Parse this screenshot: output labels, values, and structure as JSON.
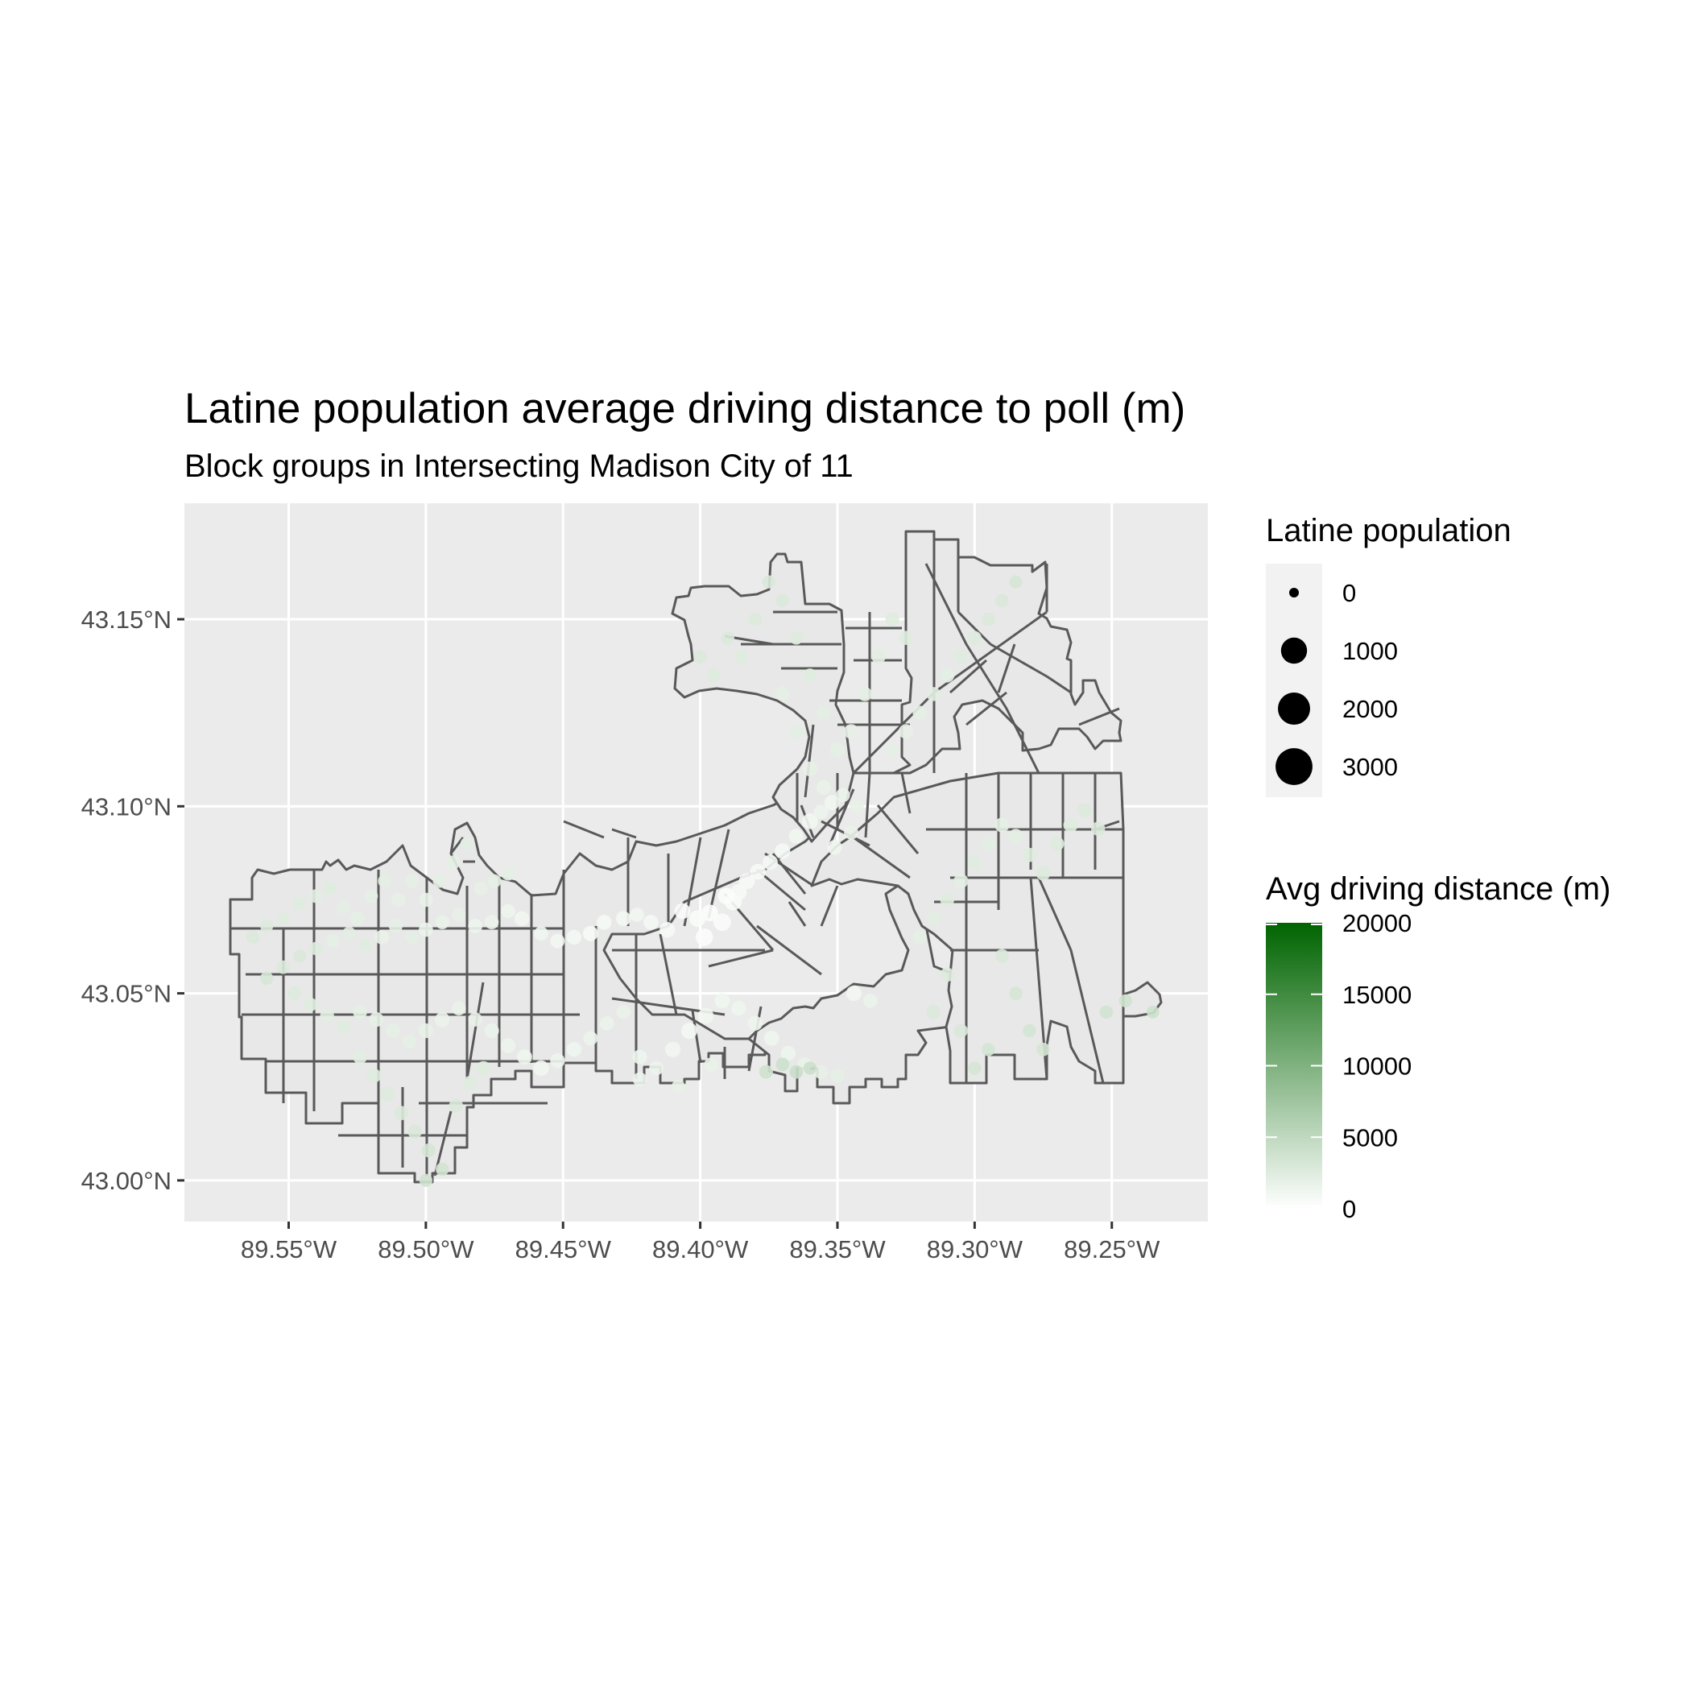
{
  "figure": {
    "title": "Latine population average driving distance to poll (m)",
    "subtitle": "Block groups in Intersecting Madison City of 11"
  },
  "chart_data": {
    "type": "map",
    "x_ticks": [
      "89.55°W",
      "89.50°W",
      "89.45°W",
      "89.40°W",
      "89.35°W",
      "89.30°W",
      "89.25°W"
    ],
    "x_tick_values": [
      -89.55,
      -89.5,
      -89.45,
      -89.4,
      -89.35,
      -89.3,
      -89.25
    ],
    "y_ticks": [
      "43.15°N",
      "43.10°N",
      "43.05°N",
      "43.00°N"
    ],
    "y_tick_values": [
      43.15,
      43.1,
      43.05,
      43.0
    ],
    "xlim": [
      -89.588,
      -89.215
    ],
    "ylim": [
      42.989,
      43.181
    ],
    "grid": true,
    "panel_color": "#ebebeb",
    "boundary_color": "#595959",
    "legends": {
      "size": {
        "title": "Latine population",
        "entries": [
          {
            "label": "0",
            "value": 0
          },
          {
            "label": "1000",
            "value": 1000
          },
          {
            "label": "2000",
            "value": 2000
          },
          {
            "label": "3000",
            "value": 3000
          }
        ]
      },
      "color": {
        "title": "Avg driving distance (m)",
        "low_color": "#ffffff",
        "high_color": "#006400",
        "range": [
          0,
          20000
        ],
        "breaks": [
          {
            "label": "20000",
            "value": 20000
          },
          {
            "label": "15000",
            "value": 15000
          },
          {
            "label": "10000",
            "value": 10000
          },
          {
            "label": "5000",
            "value": 5000
          },
          {
            "label": "0",
            "value": 0
          }
        ]
      }
    },
    "points": [
      [
        -89.3965,
        43.0715,
        130,
        300
      ],
      [
        -89.392,
        43.069,
        180,
        500
      ],
      [
        -89.388,
        43.0745,
        160,
        400
      ],
      [
        -89.386,
        43.077,
        110,
        600
      ],
      [
        -89.3905,
        43.076,
        140,
        300
      ],
      [
        -89.401,
        43.07,
        120,
        450
      ],
      [
        -89.4065,
        43.072,
        90,
        500
      ],
      [
        -89.3985,
        43.065,
        170,
        350
      ],
      [
        -89.383,
        43.08,
        100,
        700
      ],
      [
        -89.379,
        43.0825,
        90,
        600
      ],
      [
        -89.3745,
        43.085,
        70,
        900
      ],
      [
        -89.37,
        43.088,
        80,
        800
      ],
      [
        -89.365,
        43.092,
        60,
        1200
      ],
      [
        -89.36,
        43.096,
        90,
        1000
      ],
      [
        -89.356,
        43.0985,
        50,
        1500
      ],
      [
        -89.352,
        43.101,
        70,
        1100
      ],
      [
        -89.348,
        43.103,
        40,
        1600
      ],
      [
        -89.343,
        43.1,
        35,
        1800
      ],
      [
        -89.351,
        43.089,
        60,
        1300
      ],
      [
        -89.345,
        43.093,
        45,
        1700
      ],
      [
        -89.412,
        43.067,
        80,
        700
      ],
      [
        -89.418,
        43.069,
        60,
        900
      ],
      [
        -89.423,
        43.071,
        40,
        1100
      ],
      [
        -89.428,
        43.07,
        55,
        900
      ],
      [
        -89.435,
        43.069,
        60,
        800
      ],
      [
        -89.44,
        43.066,
        70,
        700
      ],
      [
        -89.446,
        43.065,
        50,
        900
      ],
      [
        -89.452,
        43.064,
        45,
        1000
      ],
      [
        -89.458,
        43.066,
        40,
        1200
      ],
      [
        -89.465,
        43.07,
        55,
        1100
      ],
      [
        -89.47,
        43.072,
        35,
        1400
      ],
      [
        -89.476,
        43.069,
        40,
        1600
      ],
      [
        -89.482,
        43.068,
        45,
        1400
      ],
      [
        -89.488,
        43.071,
        30,
        1900
      ],
      [
        -89.494,
        43.069,
        35,
        1700
      ],
      [
        -89.5,
        43.067,
        40,
        1500
      ],
      [
        -89.505,
        43.065,
        25,
        2200
      ],
      [
        -89.511,
        43.068,
        30,
        2000
      ],
      [
        -89.516,
        43.065,
        45,
        1700
      ],
      [
        -89.522,
        43.063,
        20,
        2400
      ],
      [
        -89.528,
        43.066,
        25,
        2300
      ],
      [
        -89.534,
        43.064,
        30,
        2100
      ],
      [
        -89.54,
        43.062,
        20,
        2600
      ],
      [
        -89.546,
        43.06,
        15,
        3000
      ],
      [
        -89.552,
        43.057,
        25,
        2800
      ],
      [
        -89.558,
        43.054,
        20,
        3100
      ],
      [
        -89.548,
        43.05,
        30,
        2700
      ],
      [
        -89.542,
        43.047,
        25,
        2500
      ],
      [
        -89.536,
        43.044,
        35,
        2300
      ],
      [
        -89.53,
        43.041,
        30,
        2400
      ],
      [
        -89.524,
        43.045,
        40,
        2100
      ],
      [
        -89.518,
        43.043,
        50,
        1900
      ],
      [
        -89.512,
        43.04,
        45,
        2000
      ],
      [
        -89.506,
        43.037,
        40,
        2100
      ],
      [
        -89.5,
        43.04,
        55,
        1800
      ],
      [
        -89.494,
        43.043,
        60,
        1600
      ],
      [
        -89.488,
        43.046,
        45,
        1700
      ],
      [
        -89.482,
        43.043,
        40,
        1800
      ],
      [
        -89.476,
        43.04,
        50,
        1600
      ],
      [
        -89.47,
        43.036,
        60,
        1500
      ],
      [
        -89.464,
        43.033,
        70,
        1300
      ],
      [
        -89.458,
        43.03,
        90,
        1100
      ],
      [
        -89.452,
        43.032,
        55,
        1400
      ],
      [
        -89.446,
        43.035,
        60,
        1300
      ],
      [
        -89.44,
        43.038,
        45,
        1500
      ],
      [
        -89.434,
        43.042,
        40,
        1600
      ],
      [
        -89.428,
        43.045,
        35,
        1700
      ],
      [
        -89.422,
        43.033,
        50,
        1400
      ],
      [
        -89.416,
        43.03,
        45,
        1500
      ],
      [
        -89.41,
        43.035,
        80,
        1100
      ],
      [
        -89.404,
        43.04,
        110,
        900
      ],
      [
        -89.398,
        43.044,
        90,
        1000
      ],
      [
        -89.392,
        43.048,
        70,
        1200
      ],
      [
        -89.386,
        43.046,
        60,
        1300
      ],
      [
        -89.38,
        43.042,
        55,
        1400
      ],
      [
        -89.374,
        43.038,
        70,
        1300
      ],
      [
        -89.368,
        43.034,
        65,
        1400
      ],
      [
        -89.362,
        43.031,
        45,
        1700
      ],
      [
        -89.356,
        43.029,
        35,
        1900
      ],
      [
        -89.35,
        43.028,
        30,
        2100
      ],
      [
        -89.344,
        43.05,
        80,
        1000
      ],
      [
        -89.338,
        43.048,
        40,
        1600
      ],
      [
        -89.32,
        43.065,
        45,
        2100
      ],
      [
        -89.315,
        43.07,
        40,
        2300
      ],
      [
        -89.31,
        43.075,
        35,
        2400
      ],
      [
        -89.305,
        43.08,
        50,
        2200
      ],
      [
        -89.3,
        43.085,
        40,
        2400
      ],
      [
        -89.295,
        43.09,
        45,
        2300
      ],
      [
        -89.29,
        43.095,
        60,
        2100
      ],
      [
        -89.285,
        43.092,
        55,
        2200
      ],
      [
        -89.28,
        43.087,
        40,
        2500
      ],
      [
        -89.275,
        43.082,
        35,
        2700
      ],
      [
        -89.27,
        43.09,
        45,
        2600
      ],
      [
        -89.265,
        43.095,
        50,
        2500
      ],
      [
        -89.26,
        43.099,
        40,
        2700
      ],
      [
        -89.255,
        43.094,
        35,
        2900
      ],
      [
        -89.29,
        43.06,
        30,
        3000
      ],
      [
        -89.285,
        43.05,
        25,
        3200
      ],
      [
        -89.28,
        43.04,
        20,
        3400
      ],
      [
        -89.275,
        43.035,
        25,
        3300
      ],
      [
        -89.31,
        43.055,
        40,
        2600
      ],
      [
        -89.315,
        43.045,
        35,
        2800
      ],
      [
        -89.305,
        43.04,
        30,
        3000
      ],
      [
        -89.3,
        43.03,
        25,
        3200
      ],
      [
        -89.295,
        43.035,
        20,
        3400
      ],
      [
        -89.33,
        43.115,
        45,
        2000
      ],
      [
        -89.325,
        43.12,
        50,
        1900
      ],
      [
        -89.32,
        43.125,
        40,
        2100
      ],
      [
        -89.315,
        43.13,
        35,
        2300
      ],
      [
        -89.31,
        43.135,
        45,
        2200
      ],
      [
        -89.305,
        43.14,
        40,
        2400
      ],
      [
        -89.3,
        43.145,
        30,
        2600
      ],
      [
        -89.295,
        43.15,
        25,
        2800
      ],
      [
        -89.29,
        43.155,
        20,
        3000
      ],
      [
        -89.285,
        43.16,
        15,
        3200
      ],
      [
        -89.325,
        43.145,
        35,
        2400
      ],
      [
        -89.33,
        43.15,
        30,
        2500
      ],
      [
        -89.335,
        43.14,
        40,
        2300
      ],
      [
        -89.34,
        43.13,
        45,
        2100
      ],
      [
        -89.345,
        43.12,
        60,
        1900
      ],
      [
        -89.35,
        43.115,
        50,
        2000
      ],
      [
        -89.355,
        43.125,
        35,
        2200
      ],
      [
        -89.36,
        43.135,
        30,
        2400
      ],
      [
        -89.365,
        43.145,
        25,
        2600
      ],
      [
        -89.37,
        43.155,
        20,
        2800
      ],
      [
        -89.375,
        43.16,
        15,
        3000
      ],
      [
        -89.38,
        43.15,
        25,
        2700
      ],
      [
        -89.385,
        43.14,
        30,
        2500
      ],
      [
        -89.39,
        43.145,
        20,
        2800
      ],
      [
        -89.395,
        43.135,
        25,
        2600
      ],
      [
        -89.4,
        43.14,
        20,
        2900
      ],
      [
        -89.37,
        43.13,
        45,
        2100
      ],
      [
        -89.365,
        43.12,
        40,
        2200
      ],
      [
        -89.36,
        43.11,
        55,
        1900
      ],
      [
        -89.355,
        43.105,
        60,
        1700
      ],
      [
        -89.505,
        43.08,
        30,
        2000
      ],
      [
        -89.51,
        43.075,
        35,
        1900
      ],
      [
        -89.5,
        43.075,
        40,
        1800
      ],
      [
        -89.495,
        43.08,
        25,
        2100
      ],
      [
        -89.49,
        43.085,
        30,
        2000
      ],
      [
        -89.485,
        43.09,
        20,
        2300
      ],
      [
        -89.48,
        43.078,
        35,
        1900
      ],
      [
        -89.475,
        43.08,
        25,
        2100
      ],
      [
        -89.47,
        43.082,
        30,
        2000
      ],
      [
        -89.515,
        43.08,
        25,
        2200
      ],
      [
        -89.52,
        43.076,
        30,
        2100
      ],
      [
        -89.525,
        43.07,
        35,
        2000
      ],
      [
        -89.53,
        43.073,
        25,
        2200
      ],
      [
        -89.535,
        43.078,
        20,
        2400
      ],
      [
        -89.54,
        43.076,
        30,
        2300
      ],
      [
        -89.546,
        43.074,
        25,
        2400
      ],
      [
        -89.552,
        43.07,
        20,
        2500
      ],
      [
        -89.558,
        43.068,
        15,
        2700
      ],
      [
        -89.563,
        43.065,
        20,
        2800
      ],
      [
        -89.514,
        43.023,
        60,
        2600
      ],
      [
        -89.509,
        43.018,
        45,
        2800
      ],
      [
        -89.504,
        43.013,
        35,
        3000
      ],
      [
        -89.499,
        43.008,
        30,
        3200
      ],
      [
        -89.494,
        43.003,
        20,
        3500
      ],
      [
        -89.5,
        43.0,
        15,
        3700
      ],
      [
        -89.519,
        43.028,
        50,
        2500
      ],
      [
        -89.524,
        43.033,
        40,
        2300
      ],
      [
        -89.489,
        43.02,
        35,
        2800
      ],
      [
        -89.484,
        43.026,
        45,
        2500
      ],
      [
        -89.479,
        43.03,
        40,
        2400
      ],
      [
        -89.37,
        43.031,
        25,
        4000
      ],
      [
        -89.365,
        43.029,
        20,
        4200
      ],
      [
        -89.36,
        43.03,
        15,
        4100
      ],
      [
        -89.376,
        43.029,
        30,
        3800
      ],
      [
        -89.252,
        43.045,
        20,
        3600
      ],
      [
        -89.245,
        43.048,
        15,
        3800
      ],
      [
        -89.235,
        43.045,
        10,
        3900
      ],
      [
        -89.396,
        43.031,
        35,
        1700
      ],
      [
        -89.422,
        43.027,
        40,
        1500
      ],
      [
        -89.408,
        43.025,
        30,
        1800
      ]
    ]
  }
}
